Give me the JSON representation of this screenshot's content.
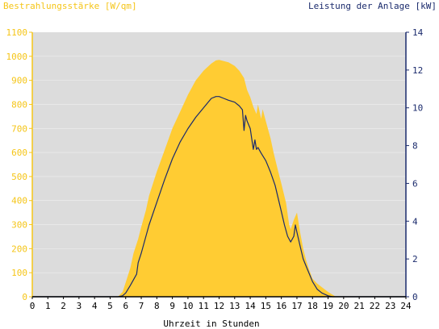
{
  "chart_data": {
    "type": "area",
    "ylabel_left": "Bestrahlungsstärke [W/qm]",
    "ylabel_right": "Leistung der Anlage [kW]",
    "xlabel": "Uhrzeit in Stunden",
    "xlim": [
      0,
      24
    ],
    "ylim_left": [
      0,
      1100
    ],
    "ylim_right": [
      0,
      14
    ],
    "x_ticks": [
      "0",
      "1",
      "2",
      "3",
      "4",
      "5",
      "6",
      "7",
      "8",
      "9",
      "10",
      "11",
      "12",
      "13",
      "14",
      "15",
      "16",
      "17",
      "18",
      "19",
      "20",
      "21",
      "22",
      "23",
      "24"
    ],
    "y_left_ticks": [
      "0",
      "100",
      "200",
      "300",
      "400",
      "500",
      "600",
      "700",
      "800",
      "900",
      "1000",
      "1100"
    ],
    "y_right_ticks": [
      "0",
      "2",
      "4",
      "6",
      "8",
      "10",
      "12",
      "14"
    ],
    "colors": {
      "plot_background": "#dcdcdc",
      "irradiance_fill": "#ffcc33",
      "power_line": "#1a2a6c",
      "left_axis": "#f5c518",
      "right_axis": "#1a2a6c",
      "grid": "#ffffff"
    },
    "series": [
      {
        "axis": "left",
        "style": "area",
        "x": [
          5.5,
          5.8,
          6.0,
          6.3,
          6.5,
          6.8,
          7.0,
          7.3,
          7.5,
          8.0,
          8.5,
          9.0,
          9.5,
          10.0,
          10.5,
          11.0,
          11.5,
          11.8,
          12.0,
          12.3,
          12.6,
          13.0,
          13.3,
          13.6,
          13.8,
          14.0,
          14.2,
          14.4,
          14.5,
          14.7,
          14.8,
          15.0,
          15.3,
          15.5,
          15.8,
          16.0,
          16.3,
          16.5,
          16.6,
          16.8,
          17.0,
          17.2,
          17.4,
          17.6,
          17.8,
          18.0,
          18.3,
          18.6,
          19.0,
          19.3,
          19.5
        ],
        "y": [
          0,
          20,
          60,
          120,
          180,
          240,
          290,
          360,
          420,
          520,
          610,
          700,
          770,
          840,
          900,
          940,
          970,
          983,
          985,
          980,
          975,
          960,
          940,
          910,
          860,
          830,
          790,
          760,
          800,
          740,
          780,
          730,
          660,
          600,
          520,
          470,
          390,
          300,
          280,
          320,
          350,
          270,
          200,
          150,
          110,
          75,
          55,
          40,
          20,
          8,
          0
        ]
      },
      {
        "axis": "right",
        "style": "line",
        "x": [
          0,
          5.5,
          5.8,
          6.0,
          6.3,
          6.5,
          6.7,
          6.8,
          7.0,
          7.5,
          8.0,
          8.5,
          9.0,
          9.5,
          10.0,
          10.5,
          11.0,
          11.5,
          11.8,
          12.0,
          12.3,
          12.6,
          13.0,
          13.3,
          13.5,
          13.6,
          13.7,
          13.8,
          14.0,
          14.2,
          14.3,
          14.4,
          14.5,
          14.7,
          15.0,
          15.3,
          15.6,
          15.8,
          16.0,
          16.2,
          16.4,
          16.6,
          16.8,
          16.9,
          17.0,
          17.2,
          17.4,
          17.6,
          17.8,
          18.0,
          18.3,
          18.6,
          19.0,
          19.3,
          24
        ],
        "y": [
          0,
          0,
          0.05,
          0.2,
          0.6,
          0.9,
          1.2,
          1.8,
          2.3,
          3.8,
          5.0,
          6.2,
          7.3,
          8.2,
          8.9,
          9.5,
          10.0,
          10.5,
          10.6,
          10.6,
          10.5,
          10.4,
          10.3,
          10.1,
          9.9,
          8.8,
          9.6,
          9.3,
          8.9,
          7.8,
          8.3,
          7.8,
          7.9,
          7.6,
          7.2,
          6.6,
          5.9,
          5.2,
          4.5,
          3.8,
          3.2,
          2.9,
          3.2,
          3.8,
          3.4,
          2.7,
          2.0,
          1.6,
          1.2,
          0.8,
          0.4,
          0.2,
          0.05,
          0,
          0
        ]
      }
    ]
  }
}
